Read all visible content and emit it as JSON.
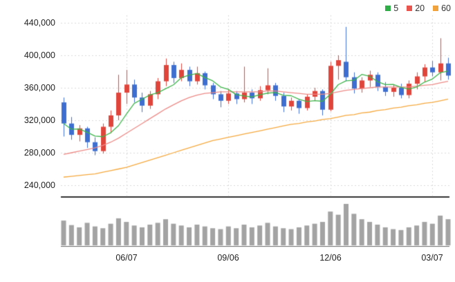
{
  "chart_data": {
    "type": "candlestick",
    "title": "",
    "xlabel": "",
    "ylabel": "",
    "y_range": [
      240000,
      440000
    ],
    "grid": true,
    "legend_position": "top-right",
    "legend": [
      {
        "label": "5",
        "color": "#2fae48"
      },
      {
        "label": "20",
        "color": "#e8544e"
      },
      {
        "label": "60",
        "color": "#f0a23c"
      }
    ],
    "y_ticks": [
      "440,000",
      "400,000",
      "360,000",
      "320,000",
      "280,000",
      "240,000"
    ],
    "y_tick_values": [
      440000,
      400000,
      360000,
      320000,
      280000,
      240000
    ],
    "x_ticks": [
      {
        "label": "06/07",
        "index": 8
      },
      {
        "label": "09/06",
        "index": 21
      },
      {
        "label": "12/06",
        "index": 34
      },
      {
        "label": "03/07",
        "index": 47
      }
    ],
    "colors": {
      "up": "#e0453c",
      "down": "#3e6fd0",
      "ma5": "#3db54a",
      "ma20": "#ec8b87",
      "ma60": "#f5a93e",
      "volume": "#a3a3a3",
      "grid": "#d9d9d9",
      "axis": "#333333"
    },
    "candles_format": [
      "open",
      "high",
      "low",
      "close"
    ],
    "candles": [
      [
        342000,
        348000,
        300000,
        316000
      ],
      [
        316000,
        324000,
        296000,
        302000
      ],
      [
        302000,
        314000,
        294000,
        310000
      ],
      [
        310000,
        312000,
        286000,
        293000
      ],
      [
        293000,
        299000,
        277000,
        282000
      ],
      [
        282000,
        316000,
        279000,
        312000
      ],
      [
        312000,
        332000,
        304000,
        326000
      ],
      [
        326000,
        376000,
        320000,
        354000
      ],
      [
        354000,
        382000,
        340000,
        364000
      ],
      [
        364000,
        370000,
        342000,
        348000
      ],
      [
        348000,
        354000,
        330000,
        338000
      ],
      [
        338000,
        356000,
        334000,
        352000
      ],
      [
        352000,
        372000,
        346000,
        368000
      ],
      [
        368000,
        396000,
        362000,
        388000
      ],
      [
        388000,
        392000,
        366000,
        372000
      ],
      [
        372000,
        390000,
        368000,
        382000
      ],
      [
        382000,
        386000,
        362000,
        368000
      ],
      [
        368000,
        386000,
        364000,
        378000
      ],
      [
        378000,
        380000,
        358000,
        363000
      ],
      [
        363000,
        366000,
        346000,
        352000
      ],
      [
        352000,
        356000,
        336000,
        344000
      ],
      [
        344000,
        358000,
        340000,
        353000
      ],
      [
        353000,
        356000,
        340000,
        346000
      ],
      [
        346000,
        386000,
        342000,
        354000
      ],
      [
        354000,
        358000,
        340000,
        347000
      ],
      [
        347000,
        362000,
        344000,
        357000
      ],
      [
        357000,
        384000,
        352000,
        363000
      ],
      [
        363000,
        366000,
        344000,
        350000
      ],
      [
        350000,
        354000,
        330000,
        337000
      ],
      [
        337000,
        348000,
        332000,
        344000
      ],
      [
        344000,
        346000,
        328000,
        335000
      ],
      [
        335000,
        352000,
        332000,
        349000
      ],
      [
        349000,
        360000,
        344000,
        356000
      ],
      [
        356000,
        358000,
        326000,
        333000
      ],
      [
        333000,
        392000,
        331000,
        387000
      ],
      [
        387000,
        400000,
        370000,
        394000
      ],
      [
        392000,
        435000,
        368000,
        373000
      ],
      [
        373000,
        379000,
        353000,
        359000
      ],
      [
        359000,
        373000,
        354000,
        369000
      ],
      [
        369000,
        381000,
        361000,
        376000
      ],
      [
        376000,
        379000,
        356000,
        361000
      ],
      [
        361000,
        367000,
        350000,
        355000
      ],
      [
        355000,
        364000,
        349000,
        360000
      ],
      [
        360000,
        365000,
        347000,
        351000
      ],
      [
        351000,
        369000,
        347000,
        365000
      ],
      [
        365000,
        379000,
        358000,
        374000
      ],
      [
        374000,
        389000,
        367000,
        385000
      ],
      [
        385000,
        393000,
        374000,
        379000
      ],
      [
        379000,
        421000,
        369000,
        390000
      ],
      [
        390000,
        397000,
        370000,
        375000
      ]
    ],
    "volume": [
      55,
      45,
      40,
      50,
      42,
      38,
      48,
      60,
      52,
      44,
      40,
      46,
      50,
      58,
      48,
      44,
      40,
      46,
      42,
      38,
      36,
      42,
      38,
      46,
      40,
      44,
      50,
      42,
      38,
      36,
      40,
      44,
      48,
      52,
      75,
      68,
      92,
      70,
      58,
      52,
      46,
      40,
      36,
      34,
      40,
      44,
      52,
      48,
      66,
      58
    ],
    "ma20": [
      278000,
      280000,
      282000,
      284000,
      286000,
      289000,
      293000,
      298000,
      304000,
      310000,
      316000,
      322000,
      328000,
      334000,
      339000,
      344000,
      348000,
      351000,
      353000,
      354000,
      355000,
      355000,
      355000,
      355000,
      355000,
      355000,
      356000,
      356000,
      355000,
      354000,
      353000,
      352000,
      352000,
      352000,
      353000,
      355000,
      357000,
      358000,
      359000,
      360000,
      361000,
      361000,
      361000,
      361000,
      361000,
      362000,
      363000,
      364000,
      366000,
      368000
    ],
    "ma60": [
      250000,
      251000,
      252000,
      253000,
      254000,
      256000,
      258000,
      260000,
      262000,
      265000,
      268000,
      271000,
      274000,
      277000,
      280000,
      283000,
      286000,
      289000,
      292000,
      295000,
      297000,
      299000,
      301000,
      303000,
      305000,
      307000,
      309000,
      311000,
      313000,
      315000,
      316000,
      318000,
      319000,
      321000,
      322000,
      324000,
      326000,
      327000,
      329000,
      330000,
      332000,
      333000,
      335000,
      336000,
      338000,
      339000,
      341000,
      342000,
      344000,
      346000
    ]
  }
}
